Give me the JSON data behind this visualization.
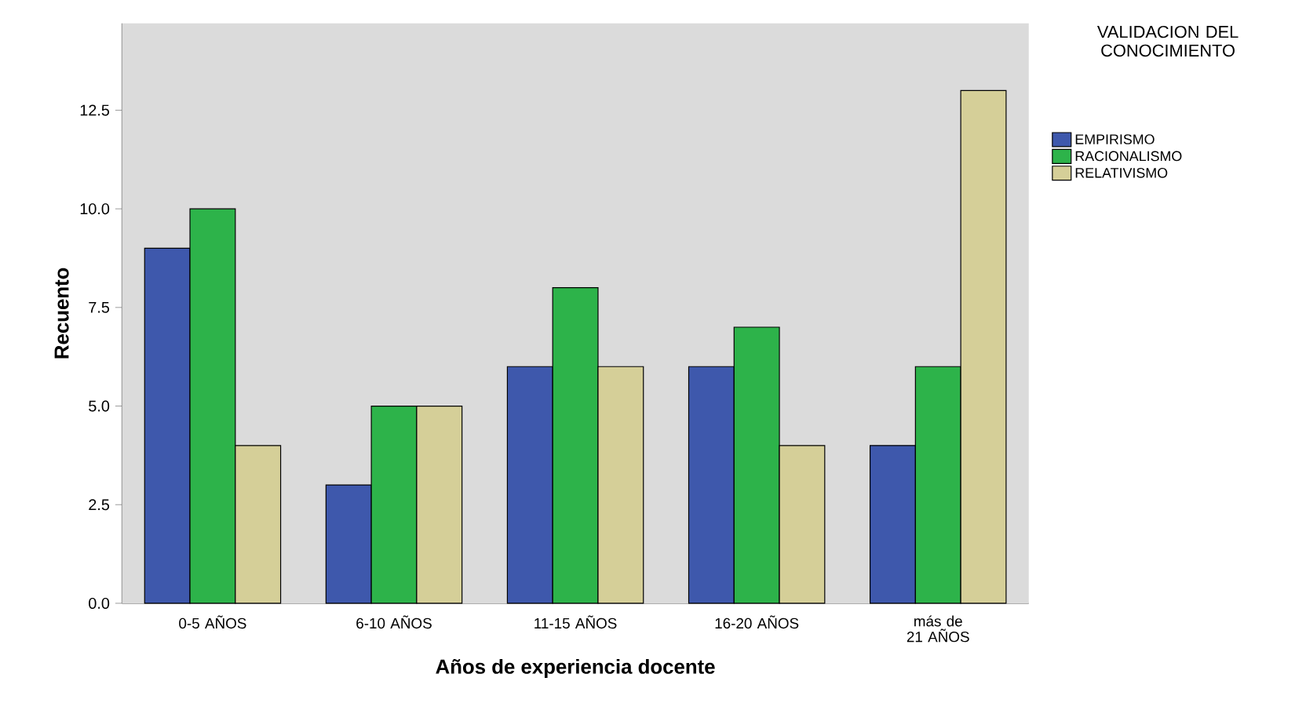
{
  "chart_data": {
    "type": "bar",
    "xlabel": "Años de experiencia docente",
    "ylabel": "Recuento",
    "legend_title": "VALIDACION DEL CONOCIMIENTO",
    "categories": [
      "0-5 AÑOS",
      "6-10 AÑOS",
      "11-15 AÑOS",
      "16-20 AÑOS",
      "más de 21 AÑOS"
    ],
    "series": [
      {
        "name": "EMPIRISMO",
        "color": "#3e58ac",
        "values": [
          9,
          3,
          6,
          6,
          4
        ]
      },
      {
        "name": "RACIONALISMO",
        "color": "#2db34a",
        "values": [
          10,
          5,
          8,
          7,
          6
        ]
      },
      {
        "name": "RELATIVISMO",
        "color": "#d5cf98",
        "values": [
          4,
          5,
          6,
          4,
          13
        ]
      }
    ],
    "ylim": [
      0,
      14.7
    ],
    "yticks": [
      {
        "value": 0,
        "label": "0.0"
      },
      {
        "value": 2.5,
        "label": "2.5"
      },
      {
        "value": 5,
        "label": "5.0"
      },
      {
        "value": 7.5,
        "label": "7.5"
      },
      {
        "value": 10,
        "label": "10.0"
      },
      {
        "value": 12.5,
        "label": "12.5"
      }
    ],
    "grid": false,
    "legend": "right"
  }
}
